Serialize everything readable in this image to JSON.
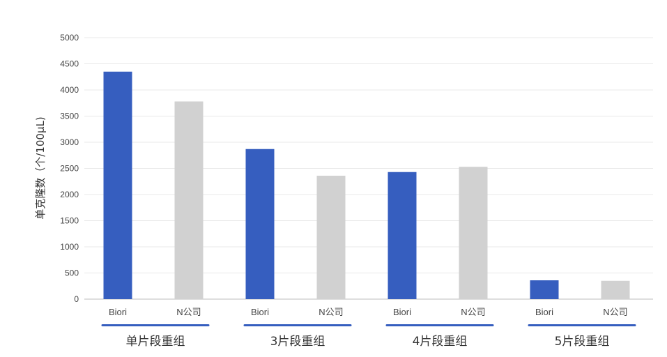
{
  "chart_data": {
    "type": "bar",
    "ylabel": "单克隆数（个/100μL)",
    "ylim": [
      0,
      5000
    ],
    "yticks": [
      0,
      500,
      1000,
      1500,
      2000,
      2500,
      3000,
      3500,
      4000,
      4500,
      5000
    ],
    "grid": true,
    "groups": [
      {
        "label": "单片段重组",
        "bars": [
          {
            "label": "Biori",
            "value": 4350
          },
          {
            "label": "N公司",
            "value": 3780
          }
        ]
      },
      {
        "label": "3片段重组",
        "bars": [
          {
            "label": "Biori",
            "value": 2870
          },
          {
            "label": "N公司",
            "value": 2360
          }
        ]
      },
      {
        "label": "4片段重组",
        "bars": [
          {
            "label": "Biori",
            "value": 2430
          },
          {
            "label": "N公司",
            "value": 2530
          }
        ]
      },
      {
        "label": "5片段重组",
        "bars": [
          {
            "label": "Biori",
            "value": 360
          },
          {
            "label": "N公司",
            "value": 350
          }
        ]
      }
    ],
    "colors": {
      "Biori": "#365ebf",
      "N公司": "#d1d1d1",
      "group_underline": "#365ebf",
      "grid": "#e8e8e8",
      "axis": "#bdbdbd",
      "tick_text": "#444444",
      "group_text": "#333333"
    }
  }
}
